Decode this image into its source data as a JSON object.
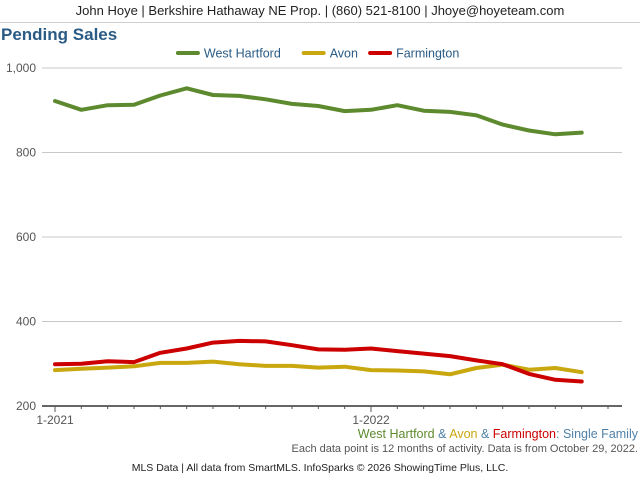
{
  "header": {
    "text": "John Hoye | Berkshire Hathaway NE Prop. | (860) 521-8100 | Jhoye@hoyeteam.com"
  },
  "subtitle": {
    "part1": "West Hartford",
    "amp1": " & ",
    "part2": "Avon",
    "amp2": " & ",
    "part3": "Farmington",
    "suffix": ": Single Family",
    "color_gray": "#666666",
    "color_blue": "#4f81a8"
  },
  "footnote": "Each data point is 12 months of activity. Data is from October 29, 2022.",
  "footer": "MLS Data | All data from SmartMLS. InfoSparks © 2026 ShowingTime Plus, LLC.",
  "chart_data": {
    "type": "line",
    "title": "Pending Sales",
    "xlabel": "",
    "ylabel": "",
    "ylim": [
      200,
      1000
    ],
    "yticks": [
      200,
      400,
      600,
      800,
      1000
    ],
    "ytick_labels": [
      "200",
      "400",
      "600",
      "800",
      "1,000"
    ],
    "x": [
      "2021-01",
      "2021-02",
      "2021-03",
      "2021-04",
      "2021-05",
      "2021-06",
      "2021-07",
      "2021-08",
      "2021-09",
      "2021-10",
      "2021-11",
      "2021-12",
      "2022-01",
      "2022-02",
      "2022-03",
      "2022-04",
      "2022-05",
      "2022-06",
      "2022-07",
      "2022-08",
      "2022-09",
      "2022-10"
    ],
    "xtick_labels": [
      {
        "index": 0,
        "label": "1-2021"
      },
      {
        "index": 12,
        "label": "1-2022"
      }
    ],
    "grid": true,
    "legend_position": "top-center",
    "series": [
      {
        "name": "West Hartford",
        "color": "#5d8a2e",
        "values": [
          922,
          901,
          912,
          913,
          935,
          952,
          936,
          934,
          926,
          915,
          910,
          898,
          901,
          912,
          899,
          896,
          888,
          866,
          852,
          843,
          847,
          null
        ]
      },
      {
        "name": "Avon",
        "color": "#c9a70e",
        "values": [
          285,
          288,
          291,
          294,
          302,
          302,
          305,
          299,
          295,
          295,
          291,
          293,
          285,
          284,
          282,
          275,
          290,
          298,
          286,
          290,
          280,
          null
        ]
      },
      {
        "name": "Farmington",
        "color": "#cc0000",
        "values": [
          299,
          300,
          306,
          304,
          326,
          336,
          350,
          354,
          353,
          344,
          334,
          333,
          336,
          330,
          324,
          318,
          308,
          299,
          276,
          262,
          258,
          null
        ]
      }
    ]
  }
}
